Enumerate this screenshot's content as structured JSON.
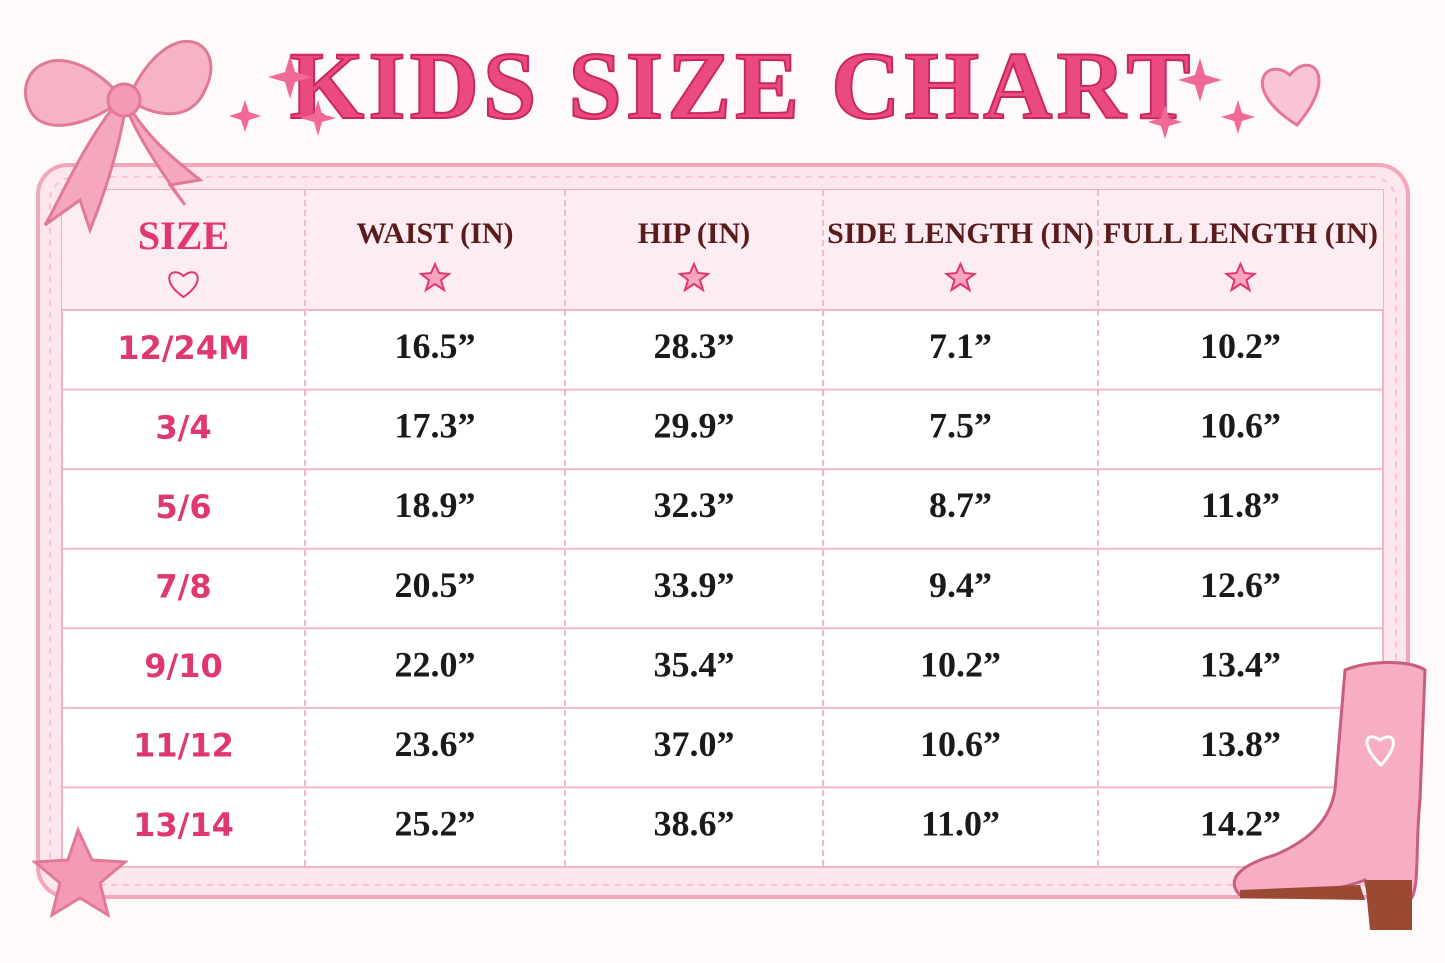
{
  "title": "KIDS SIZE CHART",
  "table": {
    "header": [
      "SIZE",
      "WAIST (IN)",
      "HIP (IN)",
      "SIDE LENGTH (IN)",
      "FULL LENGTH (IN)"
    ],
    "rows": [
      [
        "12/24M",
        "16.5”",
        "28.3”",
        "7.1”",
        "10.2”"
      ],
      [
        "3/4",
        "17.3”",
        "29.9”",
        "7.5”",
        "10.6”"
      ],
      [
        "5/6",
        "18.9”",
        "32.3”",
        "8.7”",
        "11.8”"
      ],
      [
        "7/8",
        "20.5”",
        "33.9”",
        "9.4”",
        "12.6”"
      ],
      [
        "9/10",
        "22.0”",
        "35.4”",
        "10.2”",
        "13.4”"
      ],
      [
        "11/12",
        "23.6”",
        "37.0”",
        "10.6”",
        "13.8”"
      ],
      [
        "13/14",
        "25.2”",
        "38.6”",
        "11.0”",
        "14.2”"
      ]
    ]
  }
}
